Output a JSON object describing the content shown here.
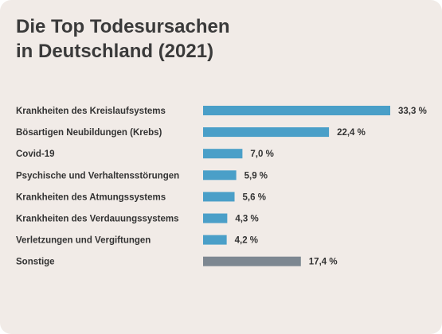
{
  "chart_data": {
    "type": "bar",
    "orientation": "horizontal",
    "title": "Die Top Todesursachen in Deutschland (2021)",
    "title_lines": [
      "Die Top Todesursachen",
      "in Deutschland (2021)"
    ],
    "categories": [
      "Krankheiten des Kreislaufsystems",
      "Bösartigen Neubildungen (Krebs)",
      "Covid-19",
      "Psychische und Verhaltensstörungen",
      "Krankheiten des Atmungssystems",
      "Krankheiten des Verdauungssystems",
      "Verletzungen und Vergiftungen",
      "Sonstige"
    ],
    "values": [
      33.3,
      22.4,
      7.0,
      5.9,
      5.6,
      4.3,
      4.2,
      17.4
    ],
    "value_labels": [
      "33,3 %",
      "22,4 %",
      "7,0 %",
      "5,9 %",
      "5,6 %",
      "4,3 %",
      "4,2 %",
      "17,4 %"
    ],
    "bar_colors": [
      "#4a9fc8",
      "#4a9fc8",
      "#4a9fc8",
      "#4a9fc8",
      "#4a9fc8",
      "#4a9fc8",
      "#4a9fc8",
      "#7d8791"
    ],
    "xlim": [
      0,
      33.3
    ],
    "unit": "%",
    "grid": false,
    "legend": "none"
  },
  "colors": {
    "background": "#f1ebe7",
    "primary_bar": "#4a9fc8",
    "other_bar": "#7d8791",
    "text": "#333333"
  }
}
